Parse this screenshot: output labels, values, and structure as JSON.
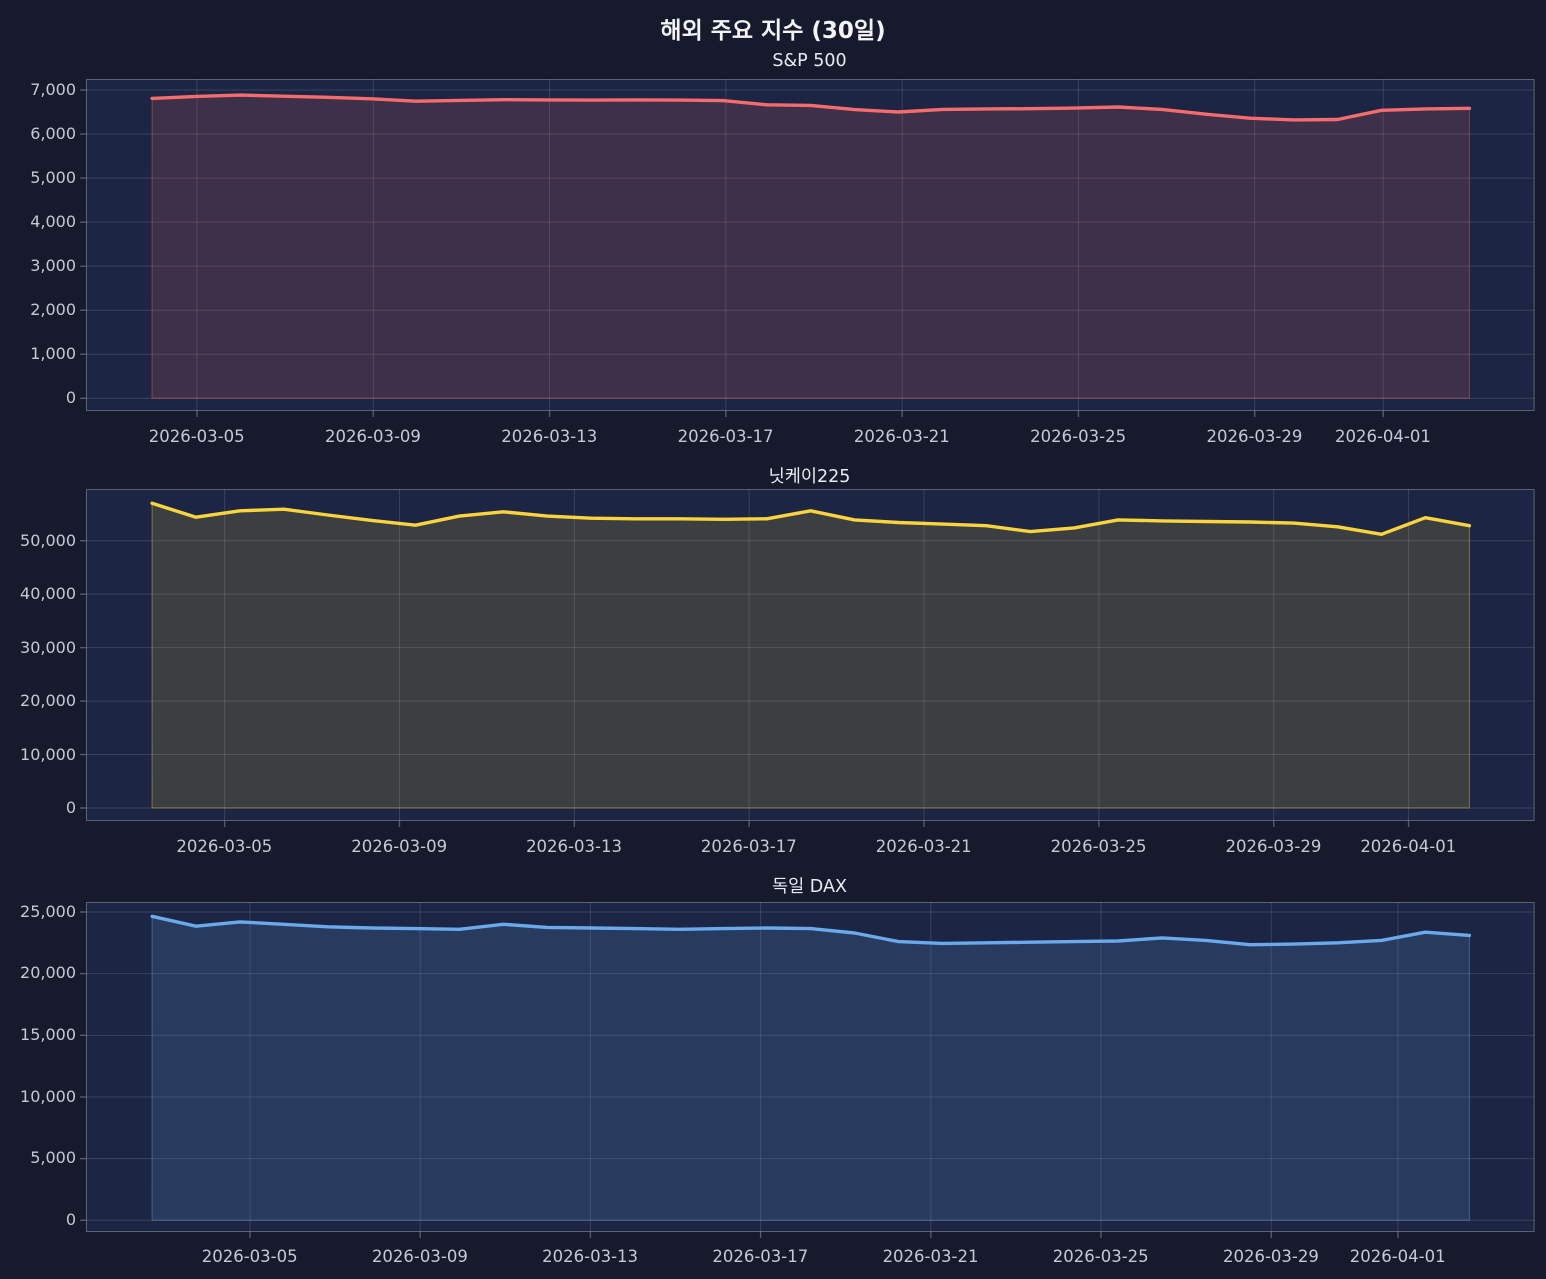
{
  "page": {
    "title": "해외 주요 지수 (30일)"
  },
  "chart_data": [
    {
      "type": "area",
      "title": "S&P 500",
      "line_color": "#f56c6c",
      "fill_color": "rgba(245,108,108,0.16)",
      "edge_color": "rgba(245,108,108,0.40)",
      "legend": "none",
      "grid": true,
      "ylim": [
        -288,
        7250
      ],
      "dates": [
        "2026-03-04",
        "2026-03-05",
        "2026-03-06",
        "2026-03-07",
        "2026-03-08",
        "2026-03-09",
        "2026-03-10",
        "2026-03-11",
        "2026-03-12",
        "2026-03-13",
        "2026-03-14",
        "2026-03-15",
        "2026-03-16",
        "2026-03-17",
        "2026-03-18",
        "2026-03-19",
        "2026-03-20",
        "2026-03-21",
        "2026-03-22",
        "2026-03-23",
        "2026-03-24",
        "2026-03-25",
        "2026-03-26",
        "2026-03-27",
        "2026-03-28",
        "2026-03-29",
        "2026-03-30",
        "2026-03-31",
        "2026-04-01",
        "2026-04-02",
        "2026-04-03"
      ],
      "values": [
        6810,
        6855,
        6885,
        6860,
        6835,
        6800,
        6745,
        6765,
        6780,
        6775,
        6770,
        6775,
        6770,
        6760,
        6665,
        6650,
        6555,
        6500,
        6560,
        6570,
        6575,
        6590,
        6615,
        6560,
        6450,
        6360,
        6320,
        6330,
        6540,
        6570,
        6585
      ],
      "y_ticks": {
        "values": [
          0,
          1000,
          2000,
          3000,
          4000,
          5000,
          6000,
          7000
        ],
        "labels": [
          "0",
          "1,000",
          "2,000",
          "3,000",
          "4,000",
          "5,000",
          "6,000",
          "7,000"
        ]
      },
      "x_ticks": [
        {
          "label": "2026-03-05",
          "pos": 0.0766
        },
        {
          "label": "2026-03-09",
          "pos": 0.1983
        },
        {
          "label": "2026-03-13",
          "pos": 0.32
        },
        {
          "label": "2026-03-17",
          "pos": 0.4417
        },
        {
          "label": "2026-03-21",
          "pos": 0.5634
        },
        {
          "label": "2026-03-25",
          "pos": 0.6851
        },
        {
          "label": "2026-03-29",
          "pos": 0.8068
        },
        {
          "label": "2026-04-01",
          "pos": 0.8955
        }
      ]
    },
    {
      "type": "area",
      "title": "닛케이225",
      "line_color": "#fad43c",
      "fill_color": "rgba(250,212,60,0.15)",
      "edge_color": "rgba(250,212,60,0.40)",
      "legend": "none",
      "grid": true,
      "ylim": [
        -2430,
        59670
      ],
      "dates": [
        "2026-03-04",
        "2026-03-05",
        "2026-03-06",
        "2026-03-07",
        "2026-03-08",
        "2026-03-09",
        "2026-03-10",
        "2026-03-11",
        "2026-03-12",
        "2026-03-13",
        "2026-03-14",
        "2026-03-15",
        "2026-03-16",
        "2026-03-17",
        "2026-03-18",
        "2026-03-19",
        "2026-03-20",
        "2026-03-21",
        "2026-03-22",
        "2026-03-23",
        "2026-03-24",
        "2026-03-25",
        "2026-03-26",
        "2026-03-27",
        "2026-03-28",
        "2026-03-29",
        "2026-03-30",
        "2026-03-31",
        "2026-04-01",
        "2026-04-02",
        "2026-04-03"
      ],
      "values": [
        57000,
        54400,
        55600,
        55900,
        54800,
        53800,
        52900,
        54600,
        55400,
        54600,
        54200,
        54100,
        54100,
        54000,
        54100,
        55600,
        53900,
        53400,
        53100,
        52800,
        51700,
        52400,
        53900,
        53700,
        53600,
        53500,
        53300,
        52600,
        51200,
        54300,
        52800
      ],
      "y_ticks": {
        "values": [
          0,
          10000,
          20000,
          30000,
          40000,
          50000
        ],
        "labels": [
          "0",
          "10,000",
          "20,000",
          "30,000",
          "40,000",
          "50,000"
        ]
      },
      "x_ticks": [
        {
          "label": "2026-03-05",
          "pos": 0.0957
        },
        {
          "label": "2026-03-09",
          "pos": 0.2164
        },
        {
          "label": "2026-03-13",
          "pos": 0.3371
        },
        {
          "label": "2026-03-17",
          "pos": 0.4578
        },
        {
          "label": "2026-03-21",
          "pos": 0.5785
        },
        {
          "label": "2026-03-25",
          "pos": 0.6992
        },
        {
          "label": "2026-03-29",
          "pos": 0.8199
        },
        {
          "label": "2026-04-01",
          "pos": 0.913
        }
      ]
    },
    {
      "type": "area",
      "title": "독일 DAX",
      "line_color": "#6aa9ec",
      "fill_color": "rgba(106,169,236,0.16)",
      "edge_color": "rgba(106,169,236,0.40)",
      "legend": "none",
      "grid": true,
      "ylim": [
        -950,
        25810
      ],
      "dates": [
        "2026-03-04",
        "2026-03-05",
        "2026-03-06",
        "2026-03-07",
        "2026-03-08",
        "2026-03-09",
        "2026-03-10",
        "2026-03-11",
        "2026-03-12",
        "2026-03-13",
        "2026-03-14",
        "2026-03-15",
        "2026-03-16",
        "2026-03-17",
        "2026-03-18",
        "2026-03-19",
        "2026-03-20",
        "2026-03-21",
        "2026-03-22",
        "2026-03-23",
        "2026-03-24",
        "2026-03-25",
        "2026-03-26",
        "2026-03-27",
        "2026-03-28",
        "2026-03-29",
        "2026-03-30",
        "2026-03-31",
        "2026-04-01",
        "2026-04-02",
        "2026-04-03"
      ],
      "values": [
        24650,
        23850,
        24200,
        24000,
        23800,
        23700,
        23650,
        23600,
        24000,
        23750,
        23700,
        23650,
        23600,
        23650,
        23700,
        23650,
        23300,
        22600,
        22450,
        22500,
        22550,
        22600,
        22650,
        22900,
        22700,
        22350,
        22400,
        22500,
        22700,
        23360,
        23100
      ],
      "y_ticks": {
        "values": [
          0,
          5000,
          10000,
          15000,
          20000,
          25000
        ],
        "labels": [
          "0",
          "5,000",
          "10,000",
          "15,000",
          "20,000",
          "25,000"
        ]
      },
      "x_ticks": [
        {
          "label": "2026-03-05",
          "pos": 0.1132
        },
        {
          "label": "2026-03-09",
          "pos": 0.2307
        },
        {
          "label": "2026-03-13",
          "pos": 0.3482
        },
        {
          "label": "2026-03-17",
          "pos": 0.4657
        },
        {
          "label": "2026-03-21",
          "pos": 0.5832
        },
        {
          "label": "2026-03-25",
          "pos": 0.7007
        },
        {
          "label": "2026-03-29",
          "pos": 0.8182
        },
        {
          "label": "2026-04-01",
          "pos": 0.9057
        }
      ]
    }
  ]
}
